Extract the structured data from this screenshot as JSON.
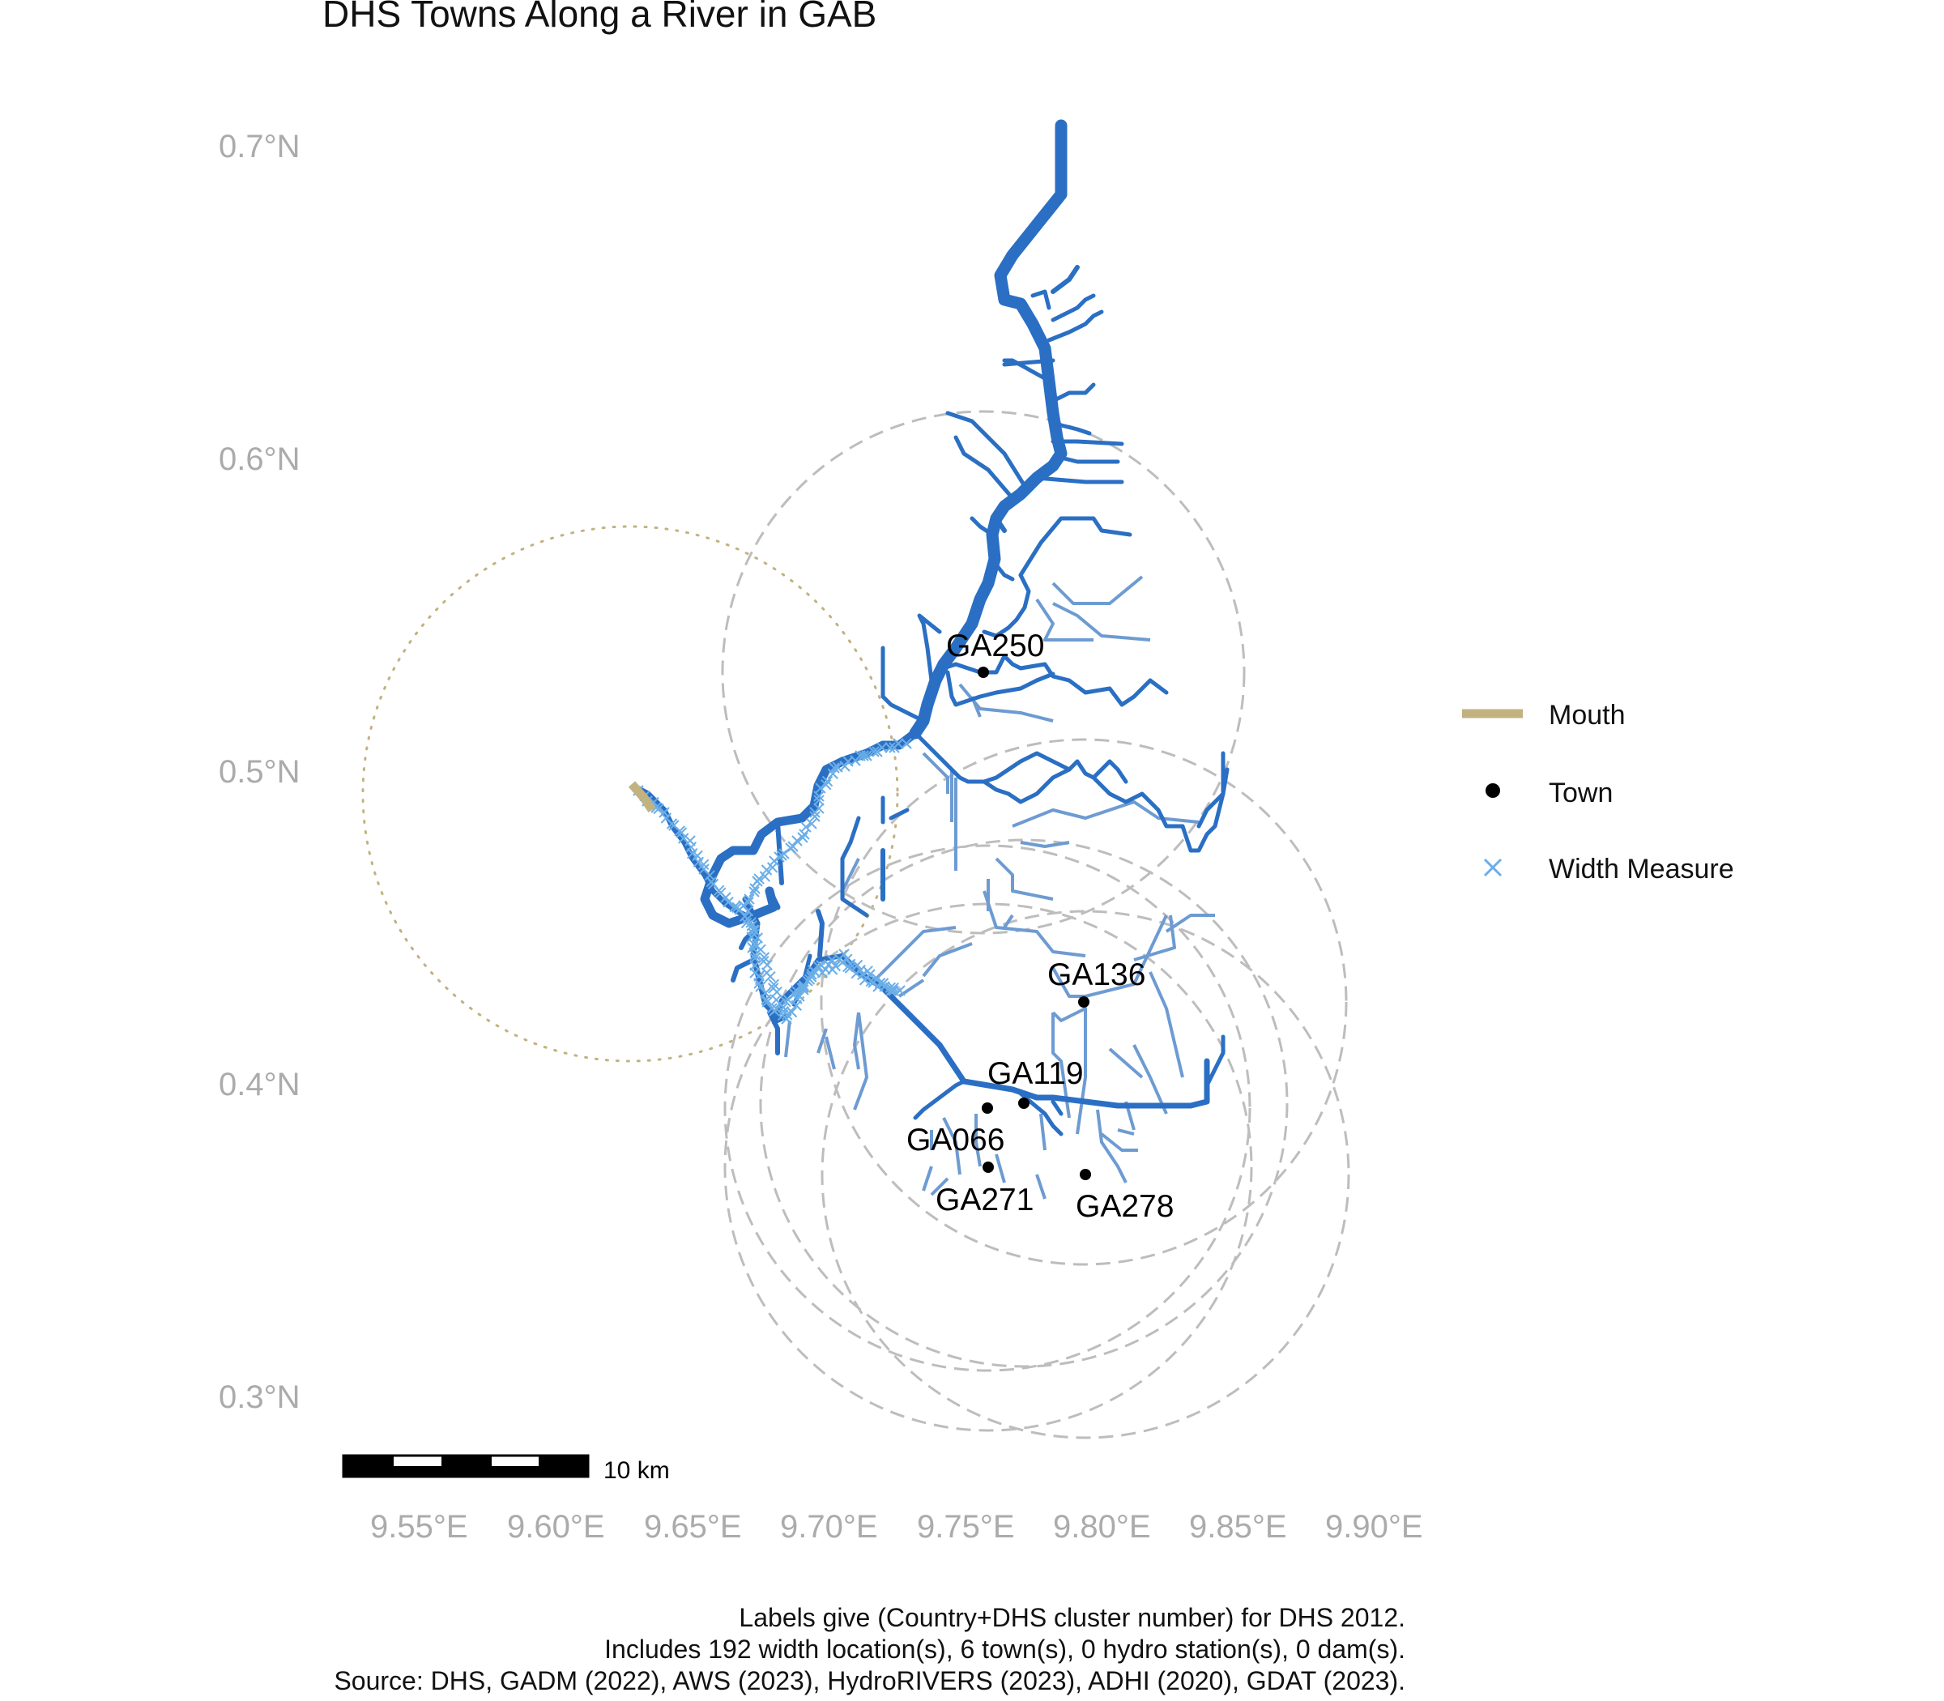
{
  "title": "DHS Towns Along a River in GAB",
  "axes": {
    "y_ticks": [
      "0.7°N",
      "0.6°N",
      "0.5°N",
      "0.4°N",
      "0.3°N"
    ],
    "x_ticks": [
      "9.55°E",
      "9.60°E",
      "9.65°E",
      "9.70°E",
      "9.75°E",
      "9.80°E",
      "9.85°E",
      "9.90°E"
    ]
  },
  "towns": [
    {
      "label": "GA250",
      "lon": 9.756,
      "lat": 0.53
    },
    {
      "label": "GA136",
      "lon": 9.793,
      "lat": 0.425
    },
    {
      "label": "GA119",
      "lon": 9.769,
      "lat": 0.393
    },
    {
      "label": "GA066",
      "lon": 9.755,
      "lat": 0.39
    },
    {
      "label": "GA271",
      "lon": 9.756,
      "lat": 0.371
    },
    {
      "label": "GA278",
      "lon": 9.793,
      "lat": 0.369
    }
  ],
  "legend": {
    "mouth": "Mouth",
    "town": "Town",
    "width_measure": "Width Measure"
  },
  "scale_bar": {
    "label": "10 km"
  },
  "caption": {
    "line1": "Labels give (Country+DHS cluster number) for DHS 2012.",
    "line2": "Includes 192 width location(s), 6 town(s), 0 hydro station(s), 0 dam(s).",
    "line3": "Source: DHS, GADM (2022), AWS (2023), HydroRIVERS (2023), ADHI (2020), GDAT (2023)."
  },
  "colors": {
    "river_main": "#2a6fc4",
    "river_minor": "#6d9bd2",
    "width_marker": "#6aaee8",
    "mouth": "#c2b280",
    "buffer": "#bdbdbd",
    "town": "#000000"
  }
}
